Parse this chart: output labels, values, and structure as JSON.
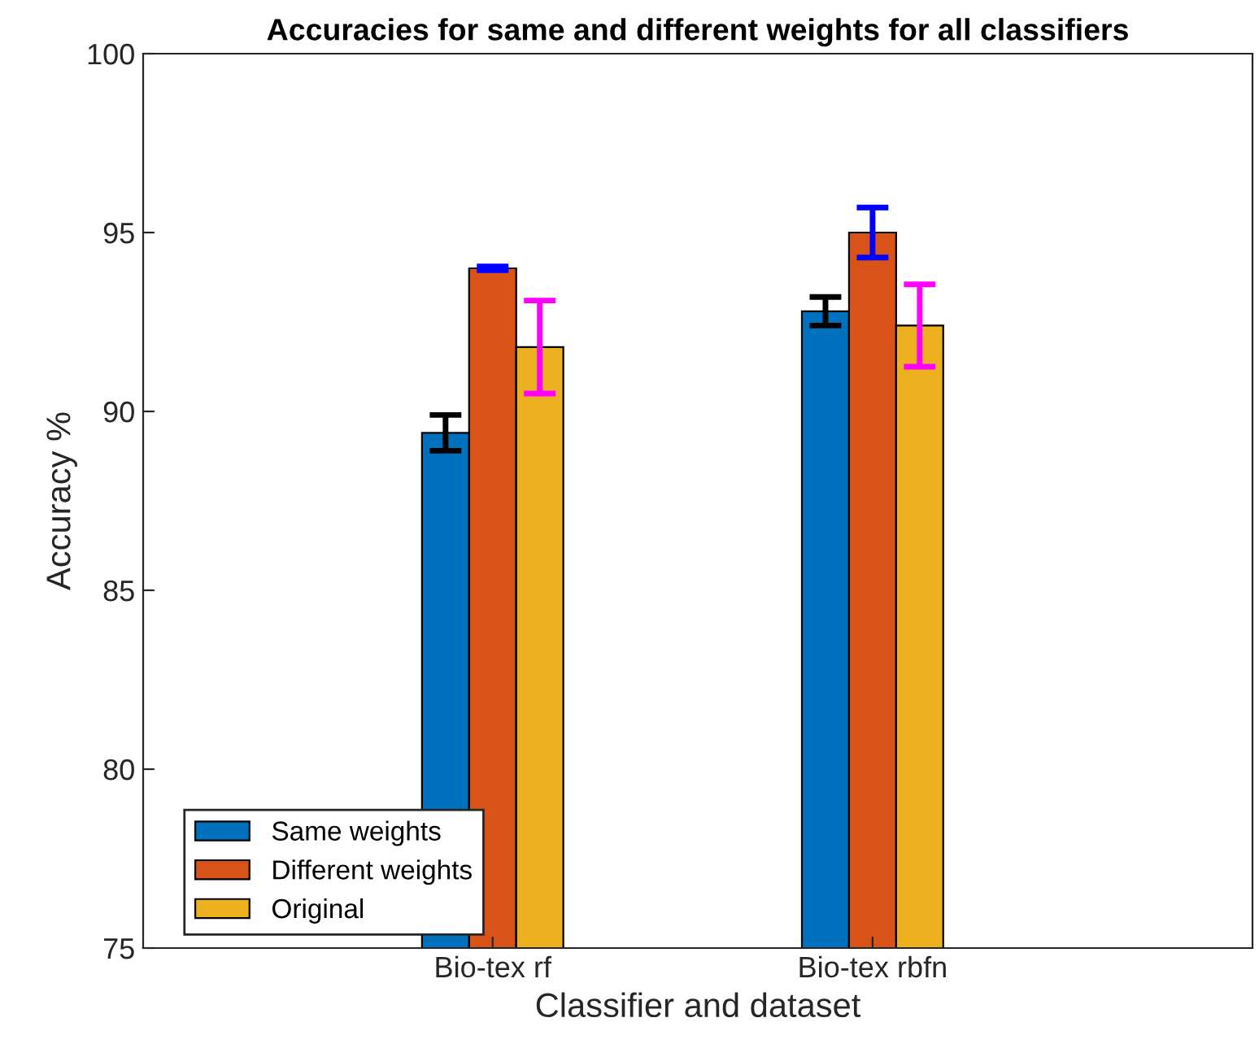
{
  "chart_data": {
    "type": "bar",
    "title": "Accuracies for same and different weights for all classifiers",
    "xlabel": "Classifier and dataset",
    "ylabel": "Accuracy %",
    "categories": [
      "Bio-tex rf",
      "Bio-tex rbfn"
    ],
    "series": [
      {
        "name": "Same weights",
        "color": "#0072bd",
        "values": [
          89.4,
          92.8
        ],
        "errors": [
          0.5,
          0.4
        ]
      },
      {
        "name": "Different weights",
        "color": "#d95319",
        "values": [
          94.0,
          95.0
        ],
        "errors": [
          0.05,
          0.7
        ]
      },
      {
        "name": "Original",
        "color": "#edb120",
        "values": [
          91.8,
          92.4
        ],
        "errors": [
          1.3,
          1.15
        ]
      }
    ],
    "ylim": [
      75,
      100
    ],
    "yticks": [
      75,
      80,
      85,
      90,
      95,
      100
    ],
    "grid": false,
    "legend": "bottom left"
  }
}
